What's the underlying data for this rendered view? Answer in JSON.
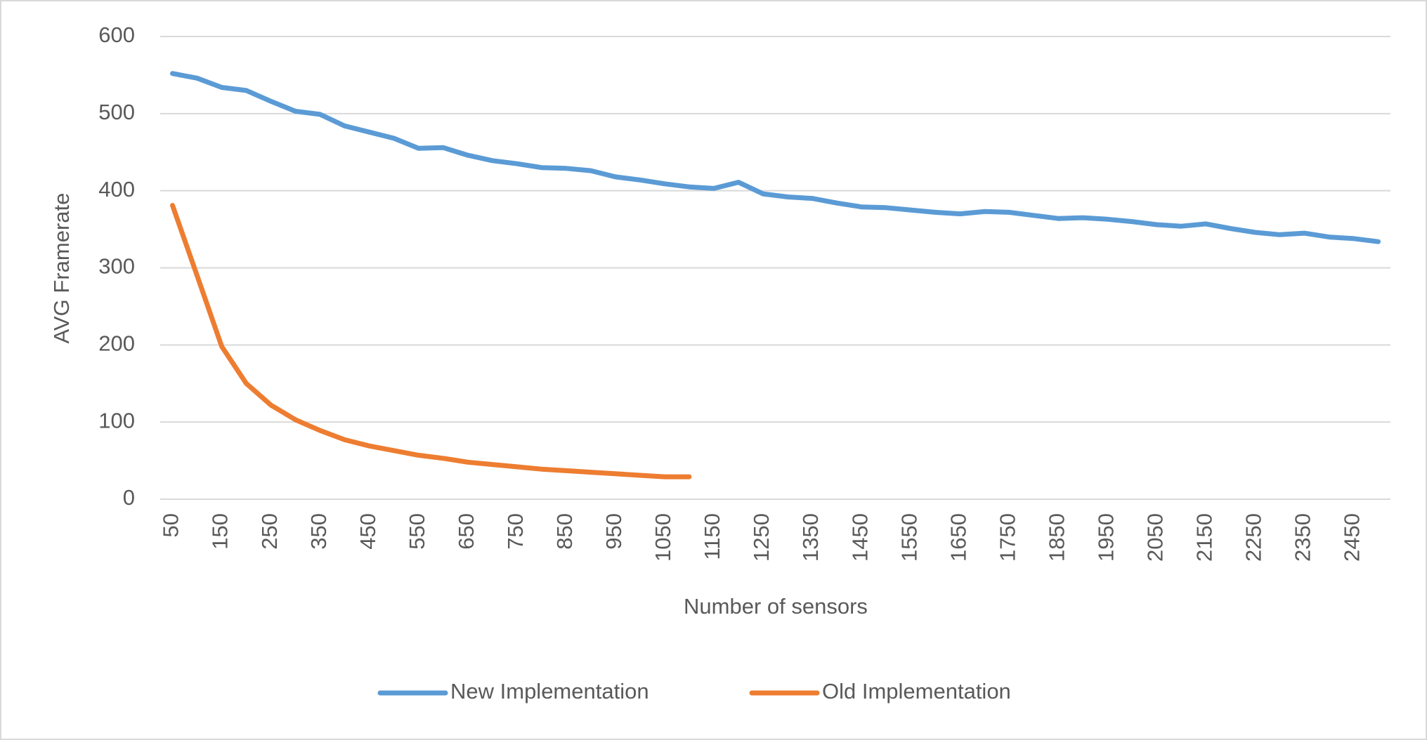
{
  "chart_data": {
    "type": "line",
    "xlabel": "Number of sensors",
    "ylabel": "AVG Framerate",
    "categories": [
      "50",
      null,
      "150",
      null,
      "250",
      null,
      "350",
      null,
      "450",
      null,
      "550",
      null,
      "650",
      null,
      "750",
      null,
      "850",
      null,
      "950",
      null,
      "1050",
      null,
      "1150",
      null,
      "1250",
      null,
      "1350",
      null,
      "1450",
      null,
      "1550",
      null,
      "1650",
      null,
      "1750",
      null,
      "1850",
      null,
      "1950",
      null,
      "2050",
      null,
      "2150",
      null,
      "2250",
      null,
      "2350",
      null,
      "2450",
      null
    ],
    "series": [
      {
        "name": "New Implementation",
        "color": "#5b9bd5",
        "values": [
          552,
          546,
          534,
          530,
          516,
          503,
          499,
          484,
          476,
          468,
          455,
          456,
          446,
          439,
          435,
          430,
          429,
          426,
          418,
          414,
          409,
          405,
          403,
          411,
          396,
          392,
          390,
          384,
          379,
          378,
          375,
          372,
          370,
          373,
          372,
          368,
          364,
          365,
          363,
          360,
          356,
          354,
          357,
          351,
          346,
          343,
          345,
          340,
          338,
          334
        ]
      },
      {
        "name": "Old Implementation",
        "color": "#ed7d31",
        "values": [
          381,
          290,
          198,
          150,
          122,
          103,
          89,
          77,
          69,
          63,
          57,
          53,
          48,
          45,
          42,
          39,
          37,
          35,
          33,
          31,
          29,
          29,
          null,
          null,
          null,
          null,
          null,
          null,
          null,
          null,
          null,
          null,
          null,
          null,
          null,
          null,
          null,
          null,
          null,
          null,
          null,
          null,
          null,
          null,
          null,
          null,
          null,
          null,
          null,
          null
        ]
      }
    ],
    "ylim": [
      0,
      600
    ],
    "yticks": [
      0,
      100,
      200,
      300,
      400,
      500,
      600
    ],
    "grid": true,
    "legend": "bottom"
  }
}
